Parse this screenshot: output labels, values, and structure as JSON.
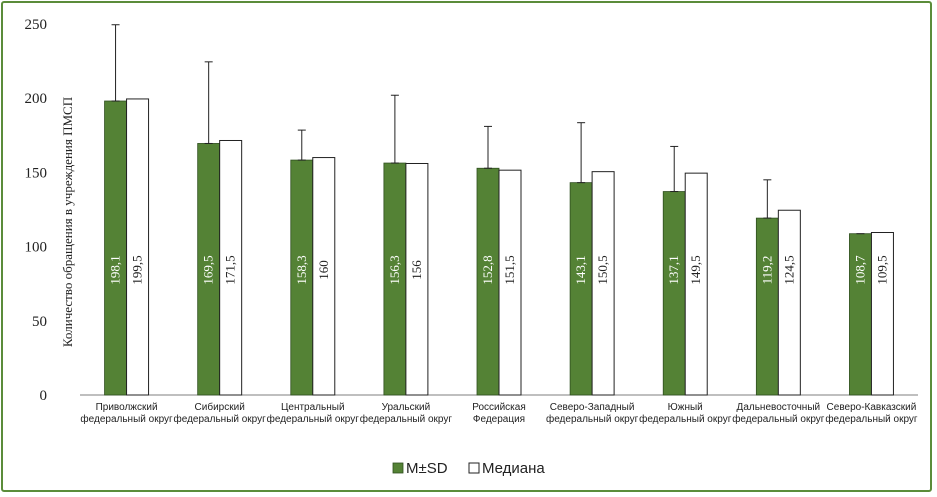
{
  "chart_data": {
    "type": "bar",
    "ylabel": "Количество обращения в учреждения ПМСП",
    "ylim": [
      0,
      250
    ],
    "yticks": [
      0,
      50,
      100,
      150,
      200,
      250
    ],
    "grid": false,
    "legend_position": "bottom",
    "categories": [
      [
        "Приволжский",
        "федеральный округ"
      ],
      [
        "Сибирский",
        "федеральный округ"
      ],
      [
        "Центральный",
        "федеральный округ"
      ],
      [
        "Уральский",
        "федеральный округ"
      ],
      [
        "Российская",
        "Федерация"
      ],
      [
        "Северо-Западный",
        "федеральный округ"
      ],
      [
        "Южный",
        "федеральный округ"
      ],
      [
        "Дальневосточный",
        "федеральный округ"
      ],
      [
        "Северо-Кавказский",
        "федеральный округ"
      ]
    ],
    "series": [
      {
        "name": "M±SD",
        "color": "#548235",
        "values": [
          198.1,
          169.5,
          158.3,
          156.3,
          152.8,
          143.1,
          137.1,
          119.2,
          108.7
        ],
        "labels": [
          "198,1",
          "169,5",
          "158,3",
          "156,3",
          "152,8",
          "143,1",
          "137,1",
          "119,2",
          "108,7"
        ],
        "error_upper": [
          249.5,
          224.5,
          178.5,
          202,
          181,
          183.5,
          167.5,
          145,
          108.7
        ]
      },
      {
        "name": "Медиана",
        "color": "#ffffff",
        "values": [
          199.5,
          171.5,
          160,
          156,
          151.5,
          150.5,
          149.5,
          124.5,
          109.5
        ],
        "labels": [
          "199,5",
          "171,5",
          "160",
          "156",
          "151,5",
          "150,5",
          "149,5",
          "124,5",
          "109,5"
        ]
      }
    ]
  }
}
